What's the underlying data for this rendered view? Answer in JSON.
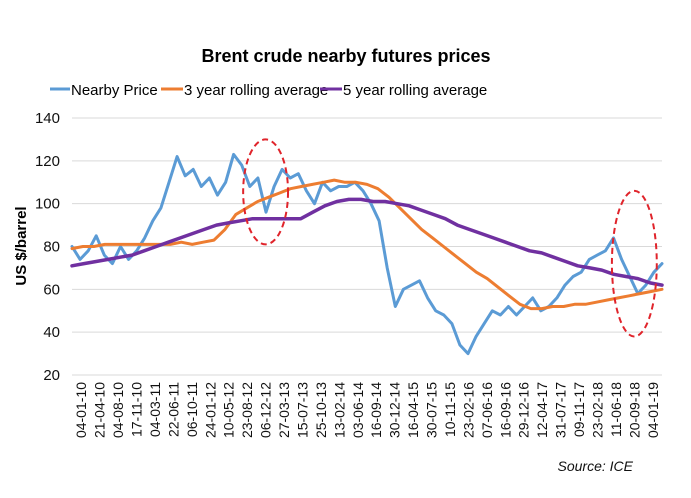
{
  "chart_data": {
    "type": "line",
    "title": "Brent crude nearby futures prices",
    "xlabel": "",
    "ylabel": "US $/barrel",
    "ylim": [
      20,
      140
    ],
    "yticks": [
      20,
      40,
      60,
      80,
      100,
      120,
      140
    ],
    "grid": true,
    "legend_position": "top",
    "source": "Source: ICE",
    "x_tick_labels": [
      "04-01-10",
      "21-04-10",
      "04-08-10",
      "17-11-10",
      "04-03-11",
      "22-06-11",
      "06-10-11",
      "24-01-12",
      "10-05-12",
      "23-08-12",
      "06-12-12",
      "27-03-13",
      "15-07-13",
      "25-10-13",
      "13-02-14",
      "03-06-14",
      "16-09-14",
      "30-12-14",
      "16-04-15",
      "30-07-15",
      "10-11-15",
      "23-02-16",
      "07-06-16",
      "16-09-16",
      "29-12-16",
      "12-04-17",
      "31-07-17",
      "09-11-17",
      "23-02-18",
      "11-06-18",
      "20-09-18",
      "04-01-19"
    ],
    "series": [
      {
        "name": "Nearby Price",
        "color": "#5b9bd5",
        "values": [
          80,
          74,
          78,
          85,
          76,
          72,
          80,
          74,
          78,
          84,
          92,
          98,
          110,
          122,
          113,
          116,
          108,
          112,
          104,
          110,
          123,
          118,
          108,
          112,
          96,
          108,
          116,
          112,
          114,
          106,
          100,
          110,
          106,
          108,
          108,
          110,
          106,
          100,
          92,
          70,
          52,
          60,
          62,
          64,
          56,
          50,
          48,
          44,
          34,
          30,
          38,
          44,
          50,
          48,
          52,
          48,
          52,
          56,
          50,
          52,
          56,
          62,
          66,
          68,
          74,
          76,
          78,
          84,
          74,
          66,
          58,
          62,
          68,
          72
        ]
      },
      {
        "name": "3 year rolling average",
        "color": "#ed7d31",
        "values": [
          79,
          80,
          80,
          81,
          81,
          81,
          81,
          81,
          81,
          81,
          82,
          81,
          82,
          83,
          88,
          95,
          98,
          101,
          103,
          105,
          107,
          108,
          109,
          110,
          111,
          110,
          110,
          109,
          107,
          103,
          98,
          93,
          88,
          84,
          80,
          76,
          72,
          68,
          65,
          61,
          57,
          53,
          51,
          51,
          52,
          52,
          53,
          53,
          54,
          55,
          56,
          57,
          58,
          59,
          60
        ]
      },
      {
        "name": "5 year rolling average",
        "color": "#7030a0",
        "values": [
          71,
          72,
          73,
          74,
          75,
          76,
          78,
          80,
          82,
          84,
          86,
          88,
          90,
          91,
          92,
          93,
          93,
          93,
          93,
          93,
          96,
          99,
          101,
          102,
          102,
          101,
          101,
          100,
          99,
          97,
          95,
          93,
          90,
          88,
          86,
          84,
          82,
          80,
          78,
          77,
          75,
          73,
          71,
          70,
          69,
          67,
          66,
          65,
          63,
          62
        ]
      }
    ],
    "annotations": [
      {
        "type": "dashed-ellipse",
        "color": "#e0242b",
        "x_range": [
          "23-08-12",
          "27-03-13"
        ],
        "y_range": [
          81,
          130
        ]
      },
      {
        "type": "dashed-ellipse",
        "color": "#e0242b",
        "x_range": [
          "11-06-18",
          "04-01-19"
        ],
        "y_range": [
          38,
          106
        ]
      }
    ]
  }
}
